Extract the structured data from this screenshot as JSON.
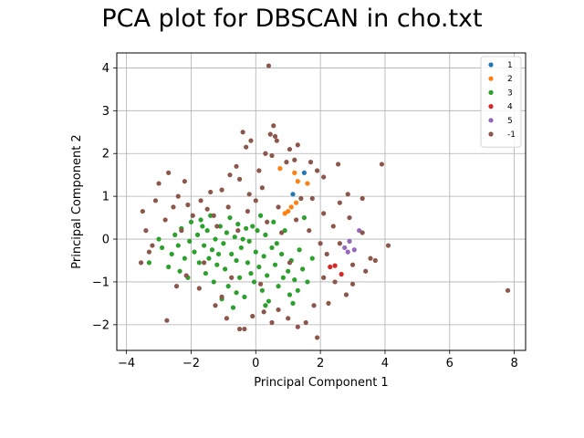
{
  "chart_data": {
    "type": "scatter",
    "title": "PCA plot for DBSCAN in cho.txt",
    "xlabel": "Principal Component 1",
    "ylabel": "Principal Component 2",
    "xlim": [
      -4.3,
      8.35
    ],
    "ylim": [
      -2.6,
      4.35
    ],
    "xticks": [
      -4,
      -2,
      0,
      2,
      4,
      6,
      8
    ],
    "yticks": [
      -2,
      -1,
      0,
      1,
      2,
      3,
      4
    ],
    "grid": true,
    "legend_position": "top-right",
    "series": [
      {
        "name": "1",
        "color": "#1f77b4",
        "points": [
          [
            1.15,
            1.05
          ],
          [
            1.5,
            1.55
          ]
        ]
      },
      {
        "name": "2",
        "color": "#ff7f0e",
        "points": [
          [
            1.2,
            1.55
          ],
          [
            1.6,
            1.3
          ],
          [
            0.75,
            1.65
          ],
          [
            1.0,
            0.65
          ],
          [
            1.1,
            0.75
          ],
          [
            0.9,
            0.6
          ],
          [
            1.3,
            1.35
          ],
          [
            1.25,
            0.85
          ]
        ]
      },
      {
        "name": "3",
        "color": "#2ca02c",
        "points": [
          [
            -3.3,
            -0.55
          ],
          [
            -2.9,
            -0.2
          ],
          [
            -2.7,
            -0.65
          ],
          [
            -2.6,
            -0.35
          ],
          [
            -2.5,
            0.1
          ],
          [
            -2.4,
            -0.15
          ],
          [
            -2.3,
            0.25
          ],
          [
            -2.2,
            -0.45
          ],
          [
            -2.1,
            -0.9
          ],
          [
            -2.0,
            0.4
          ],
          [
            -1.9,
            -0.3
          ],
          [
            -1.8,
            0.1
          ],
          [
            -1.75,
            -0.55
          ],
          [
            -1.7,
            0.45
          ],
          [
            -1.6,
            -0.15
          ],
          [
            -1.55,
            -0.8
          ],
          [
            -1.5,
            0.2
          ],
          [
            -1.45,
            -0.45
          ],
          [
            -1.4,
            0.55
          ],
          [
            -1.35,
            -0.25
          ],
          [
            -1.3,
            -1.0
          ],
          [
            -1.25,
            0.0
          ],
          [
            -1.2,
            -0.6
          ],
          [
            -1.1,
            0.3
          ],
          [
            -1.05,
            -1.4
          ],
          [
            -1.0,
            -0.1
          ],
          [
            -0.95,
            -0.7
          ],
          [
            -0.9,
            0.15
          ],
          [
            -0.85,
            -1.1
          ],
          [
            -0.8,
            0.5
          ],
          [
            -0.75,
            -0.35
          ],
          [
            -0.7,
            -1.6
          ],
          [
            -0.65,
            0.05
          ],
          [
            -0.6,
            -0.5
          ],
          [
            -0.55,
            0.35
          ],
          [
            -0.5,
            -0.9
          ],
          [
            -0.45,
            -0.2
          ],
          [
            -0.4,
            0.0
          ],
          [
            -0.35,
            -1.35
          ],
          [
            -0.3,
            0.25
          ],
          [
            -0.25,
            -0.55
          ],
          [
            -0.2,
            -0.05
          ],
          [
            -0.1,
            0.3
          ],
          [
            -0.05,
            -1.0
          ],
          [
            0.0,
            -0.3
          ],
          [
            0.05,
            0.2
          ],
          [
            0.1,
            -0.65
          ],
          [
            0.15,
            0.55
          ],
          [
            0.2,
            -1.2
          ],
          [
            0.25,
            -0.4
          ],
          [
            0.3,
            0.1
          ],
          [
            0.35,
            -0.85
          ],
          [
            0.4,
            -1.45
          ],
          [
            0.5,
            -0.2
          ],
          [
            0.55,
            0.4
          ],
          [
            0.6,
            -0.6
          ],
          [
            0.7,
            -1.1
          ],
          [
            0.8,
            -0.35
          ],
          [
            0.85,
            -0.9
          ],
          [
            0.9,
            0.2
          ],
          [
            1.0,
            -0.75
          ],
          [
            1.05,
            -1.3
          ],
          [
            1.1,
            -0.5
          ],
          [
            1.2,
            -0.95
          ],
          [
            1.3,
            -1.2
          ],
          [
            1.35,
            -0.25
          ],
          [
            1.45,
            -0.7
          ],
          [
            1.5,
            0.5
          ],
          [
            1.6,
            -1.0
          ],
          [
            1.75,
            -0.45
          ],
          [
            -2.05,
            -0.05
          ],
          [
            -1.15,
            -0.35
          ],
          [
            -0.15,
            -0.8
          ],
          [
            0.65,
            -0.1
          ],
          [
            -1.65,
            0.3
          ],
          [
            -0.6,
            -1.25
          ],
          [
            0.3,
            -1.55
          ],
          [
            1.15,
            -1.5
          ],
          [
            -2.35,
            -0.75
          ],
          [
            -3.0,
            0.0
          ]
        ]
      },
      {
        "name": "4",
        "color": "#d62728",
        "points": [
          [
            2.3,
            -0.65
          ],
          [
            2.45,
            -0.62
          ],
          [
            2.65,
            -0.82
          ]
        ]
      },
      {
        "name": "5",
        "color": "#9467bd",
        "points": [
          [
            2.75,
            -0.2
          ],
          [
            2.85,
            -0.3
          ],
          [
            3.05,
            -0.25
          ],
          [
            3.2,
            0.2
          ],
          [
            2.9,
            -0.05
          ]
        ]
      },
      {
        "name": "-1",
        "color": "#8c564b",
        "points": [
          [
            0.4,
            4.05
          ],
          [
            0.55,
            2.65
          ],
          [
            0.65,
            2.3
          ],
          [
            0.45,
            2.45
          ],
          [
            0.6,
            2.4
          ],
          [
            -0.4,
            2.5
          ],
          [
            -0.3,
            2.15
          ],
          [
            0.3,
            2.0
          ],
          [
            0.5,
            1.95
          ],
          [
            1.05,
            2.1
          ],
          [
            1.3,
            2.2
          ],
          [
            1.2,
            1.85
          ],
          [
            1.7,
            1.8
          ],
          [
            1.9,
            1.6
          ],
          [
            2.1,
            1.45
          ],
          [
            2.55,
            1.75
          ],
          [
            3.9,
            1.75
          ],
          [
            2.85,
            1.05
          ],
          [
            3.3,
            0.95
          ],
          [
            -3.0,
            1.3
          ],
          [
            -2.7,
            1.55
          ],
          [
            -2.2,
            1.35
          ],
          [
            -3.1,
            0.9
          ],
          [
            -3.5,
            0.65
          ],
          [
            -2.4,
            1.0
          ],
          [
            -2.1,
            0.8
          ],
          [
            -1.7,
            0.9
          ],
          [
            -1.4,
            1.1
          ],
          [
            -1.05,
            1.15
          ],
          [
            -0.8,
            1.5
          ],
          [
            -0.5,
            1.4
          ],
          [
            -0.2,
            1.05
          ],
          [
            0.2,
            1.2
          ],
          [
            0.7,
            0.75
          ],
          [
            1.75,
            0.95
          ],
          [
            2.1,
            0.6
          ],
          [
            2.4,
            0.3
          ],
          [
            2.6,
            0.85
          ],
          [
            2.9,
            0.5
          ],
          [
            3.3,
            0.15
          ],
          [
            3.55,
            -0.45
          ],
          [
            3.7,
            -0.5
          ],
          [
            4.1,
            -0.15
          ],
          [
            3.4,
            -0.75
          ],
          [
            2.8,
            -1.3
          ],
          [
            2.45,
            -1.0
          ],
          [
            2.1,
            -0.9
          ],
          [
            1.8,
            -1.55
          ],
          [
            1.55,
            -1.95
          ],
          [
            1.9,
            -2.3
          ],
          [
            1.0,
            -1.85
          ],
          [
            0.7,
            -1.65
          ],
          [
            0.25,
            -1.7
          ],
          [
            -0.1,
            -1.8
          ],
          [
            -0.5,
            -2.1
          ],
          [
            -0.9,
            -1.85
          ],
          [
            -1.25,
            -1.55
          ],
          [
            -1.75,
            -1.15
          ],
          [
            -2.15,
            -0.85
          ],
          [
            -2.75,
            -1.9
          ],
          [
            -3.55,
            -0.55
          ],
          [
            -3.4,
            0.2
          ],
          [
            -3.2,
            -0.15
          ],
          [
            -2.8,
            0.45
          ],
          [
            -2.55,
            0.75
          ],
          [
            -1.95,
            0.55
          ],
          [
            -1.5,
            0.7
          ],
          [
            -1.2,
            0.3
          ],
          [
            -0.85,
            0.75
          ],
          [
            -0.55,
            0.2
          ],
          [
            -0.25,
            0.65
          ],
          [
            0.0,
            0.9
          ],
          [
            0.35,
            0.4
          ],
          [
            0.8,
            0.15
          ],
          [
            1.25,
            0.45
          ],
          [
            1.65,
            0.2
          ],
          [
            2.0,
            -0.1
          ],
          [
            2.2,
            -0.35
          ],
          [
            2.6,
            -0.1
          ],
          [
            3.0,
            -0.6
          ],
          [
            7.8,
            -1.2
          ],
          [
            1.4,
            0.95
          ],
          [
            0.1,
            1.6
          ],
          [
            -0.6,
            1.7
          ],
          [
            -1.3,
            0.55
          ],
          [
            -2.3,
            0.2
          ],
          [
            -3.3,
            -0.3
          ],
          [
            -1.6,
            -0.55
          ],
          [
            -0.75,
            -0.9
          ],
          [
            0.15,
            -1.05
          ],
          [
            1.05,
            -0.55
          ],
          [
            2.25,
            -1.5
          ],
          [
            3.0,
            -1.05
          ],
          [
            -0.35,
            -2.1
          ],
          [
            0.5,
            -1.95
          ],
          [
            1.3,
            -2.05
          ],
          [
            -1.05,
            -1.35
          ],
          [
            -2.45,
            -1.1
          ],
          [
            -0.15,
            2.3
          ],
          [
            0.95,
            1.8
          ]
        ]
      }
    ]
  }
}
